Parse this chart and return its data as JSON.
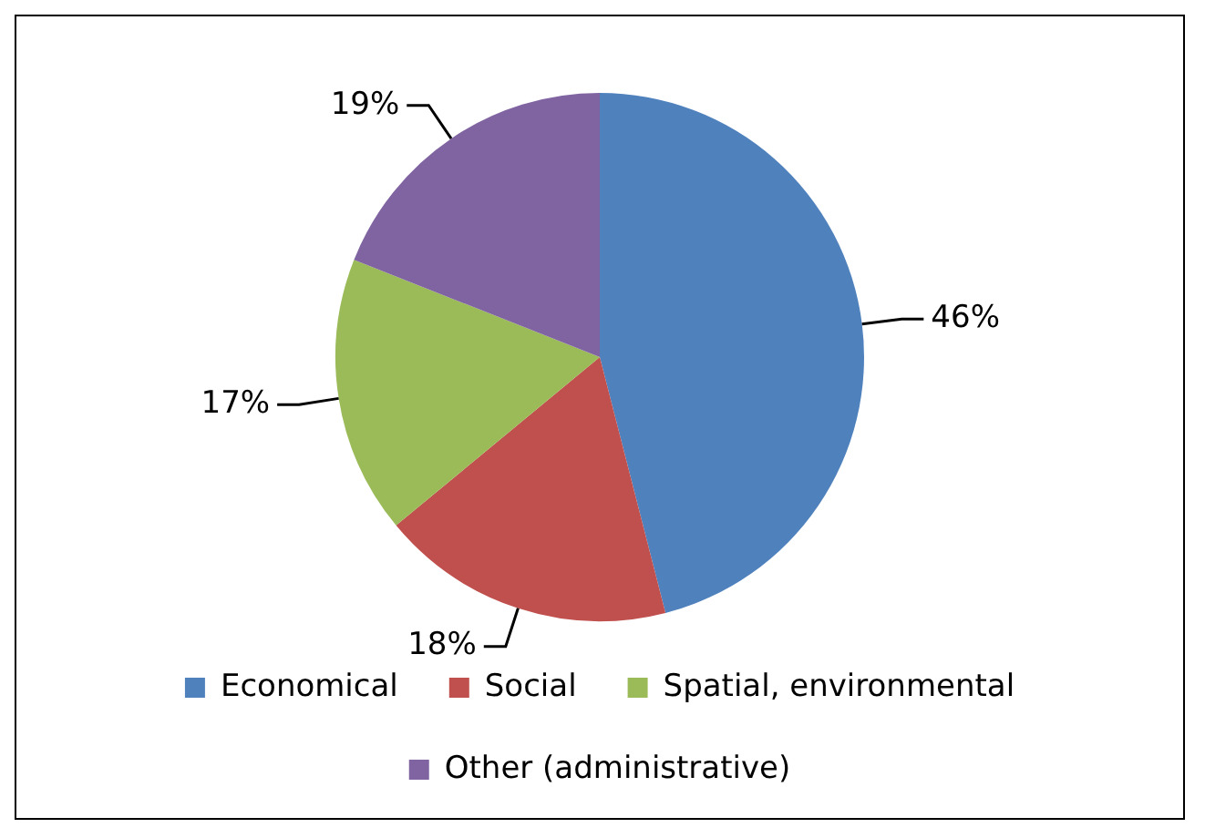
{
  "chart_data": {
    "type": "pie",
    "categories": [
      "Economical",
      "Social",
      "Spatial, environmental",
      "Other (administrative)"
    ],
    "values": [
      46,
      18,
      17,
      19
    ],
    "colors": [
      "#4f81bd",
      "#c0504d",
      "#9bbb59",
      "#8064a2"
    ],
    "value_labels": [
      "46%",
      "18%",
      "17%",
      "19%"
    ],
    "legend": "bottom"
  }
}
